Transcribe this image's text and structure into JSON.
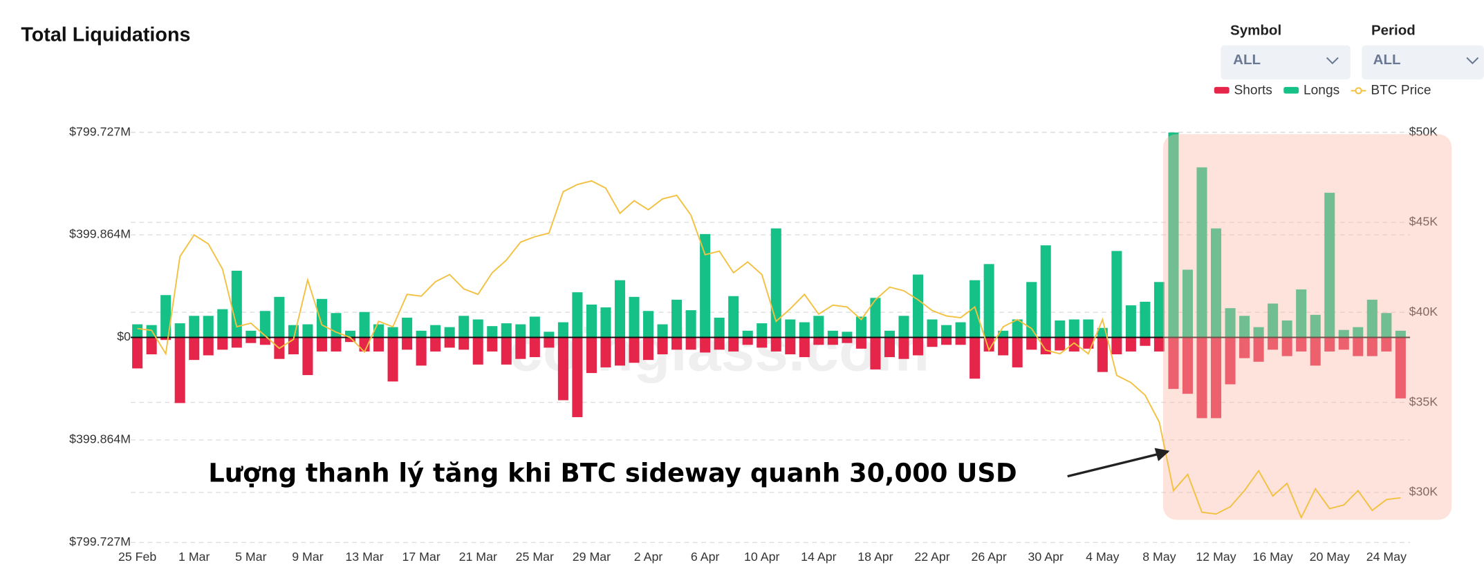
{
  "header": {
    "title": "Total Liquidations",
    "symbol_label": "Symbol",
    "symbol_value": "ALL",
    "period_label": "Period",
    "period_value": "ALL"
  },
  "watermark": "coinglass.com",
  "annotation": "Lượng thanh lý tăng khi BTC sideway quanh 30,000 USD",
  "chart_data": {
    "type": "bar",
    "categories": [
      "25 Feb",
      null,
      null,
      null,
      "1 Mar",
      null,
      null,
      null,
      "5 Mar",
      null,
      null,
      null,
      "9 Mar",
      null,
      null,
      null,
      "13 Mar",
      null,
      null,
      null,
      "17 Mar",
      null,
      null,
      null,
      "21 Mar",
      null,
      null,
      null,
      "25 Mar",
      null,
      null,
      null,
      "29 Mar",
      null,
      null,
      null,
      "2 Apr",
      null,
      null,
      null,
      "6 Apr",
      null,
      null,
      null,
      "10 Apr",
      null,
      null,
      null,
      "14 Apr",
      null,
      null,
      null,
      "18 Apr",
      null,
      null,
      null,
      "22 Apr",
      null,
      null,
      null,
      "26 Apr",
      null,
      null,
      null,
      "30 Apr",
      null,
      null,
      null,
      "4 May",
      null,
      null,
      null,
      "8 May",
      null,
      null,
      null,
      "12 May",
      null,
      null,
      null,
      "16 May",
      null,
      null,
      null,
      "20 May",
      null,
      null,
      null,
      "24 May",
      null
    ],
    "series": [
      {
        "name": "Shorts",
        "color": "#e5254a",
        "values": [
          -121,
          -66,
          -10,
          -256,
          -88,
          -70,
          -48,
          -40,
          -22,
          -29,
          -84,
          -66,
          -147,
          -55,
          -55,
          -18,
          -55,
          -55,
          -172,
          -48,
          -110,
          -55,
          -40,
          -48,
          -106,
          -55,
          -106,
          -84,
          -77,
          -40,
          -245,
          -311,
          -139,
          -117,
          -110,
          -99,
          -88,
          -66,
          -48,
          -48,
          -59,
          -48,
          -55,
          -29,
          -40,
          -55,
          -66,
          -77,
          -29,
          -29,
          -22,
          -44,
          -125,
          -77,
          -84,
          -70,
          -37,
          -29,
          -29,
          -161,
          -55,
          -70,
          -117,
          -48,
          -66,
          -51,
          -55,
          -44,
          -135,
          -66,
          -55,
          -33,
          -55,
          -201,
          -220,
          -315,
          -315,
          -183,
          -81,
          -95,
          -48,
          -73,
          -55,
          -110,
          -55,
          -48,
          -73,
          -73,
          -55,
          -238
        ]
      },
      {
        "name": "Longs",
        "color": "#16c187",
        "values": [
          51,
          48,
          165,
          55,
          84,
          84,
          110,
          260,
          26,
          103,
          158,
          48,
          51,
          150,
          95,
          26,
          99,
          51,
          40,
          77,
          26,
          48,
          40,
          84,
          70,
          44,
          55,
          51,
          81,
          22,
          59,
          176,
          128,
          117,
          223,
          158,
          103,
          51,
          147,
          106,
          403,
          77,
          161,
          26,
          55,
          425,
          70,
          59,
          84,
          26,
          22,
          81,
          154,
          26,
          84,
          245,
          70,
          48,
          59,
          223,
          286,
          26,
          70,
          216,
          359,
          66,
          70,
          70,
          37,
          337,
          125,
          139,
          216,
          799,
          264,
          663,
          425,
          114,
          84,
          40,
          132,
          66,
          187,
          88,
          564,
          29,
          40,
          147,
          95,
          26
        ]
      },
      {
        "name": "BTC Price",
        "color": "#f3c040",
        "type": "line",
        "axis": "y2",
        "values": [
          39100,
          39000,
          37700,
          43100,
          44300,
          43800,
          42400,
          39200,
          39400,
          38700,
          38000,
          38500,
          41800,
          39300,
          38900,
          38600,
          37800,
          39500,
          39200,
          41000,
          40900,
          41700,
          42100,
          41300,
          41000,
          42200,
          42900,
          43900,
          44200,
          44400,
          46700,
          47100,
          47300,
          46900,
          45500,
          46200,
          45700,
          46300,
          46500,
          45400,
          43200,
          43400,
          42200,
          42800,
          42100,
          39500,
          40200,
          41000,
          39900,
          40400,
          40300,
          39600,
          40700,
          41400,
          41200,
          40700,
          40100,
          39800,
          39700,
          40300,
          37900,
          39200,
          39600,
          39100,
          37900,
          37700,
          38300,
          37700,
          39600,
          36500,
          36100,
          35400,
          33900,
          30100,
          31000,
          28900,
          28800,
          29200,
          30100,
          31200,
          29800,
          30500,
          28600,
          30200,
          29100,
          29300,
          30100,
          29000,
          29600,
          29700
        ]
      }
    ],
    "ylim": [
      -799.727,
      799.727
    ],
    "yticks": [
      {
        "value": 799.727,
        "label": "$799.727M"
      },
      {
        "value": 399.864,
        "label": "$399.864M"
      },
      {
        "value": 0,
        "label": "$0"
      },
      {
        "value": -399.864,
        "label": "$399.864M"
      },
      {
        "value": -799.727,
        "label": "$799.727M"
      }
    ],
    "y2lim": [
      27218,
      50000
    ],
    "y2ticks": [
      {
        "value": 30000,
        "label": "$30K"
      },
      {
        "value": 35000,
        "label": "$35K"
      },
      {
        "value": 40000,
        "label": "$40K"
      },
      {
        "value": 45000,
        "label": "$45K"
      },
      {
        "value": 50000,
        "label": "$50K"
      }
    ],
    "grid": true,
    "legend": "top-right"
  }
}
